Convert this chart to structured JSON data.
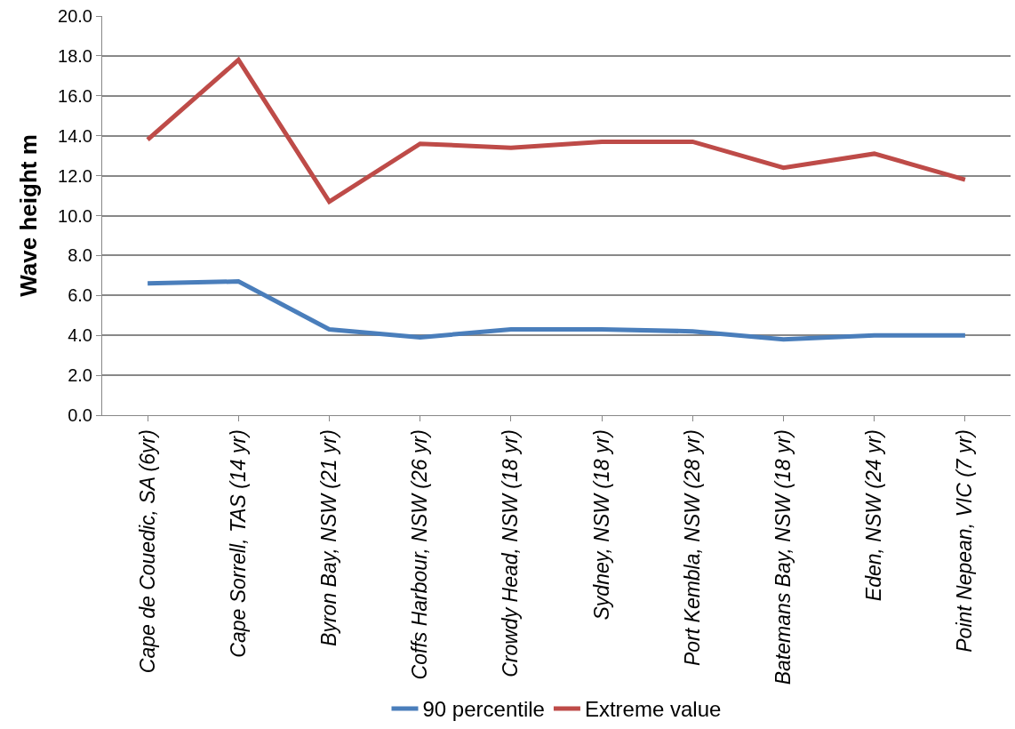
{
  "chart_data": {
    "type": "line",
    "ylabel": "Wave height m",
    "categories": [
      "Cape de Couedic, SA (6yr)",
      "Cape Sorrell, TAS (14 yr)",
      "Byron Bay, NSW (21 yr)",
      "Coffs Harbour, NSW (26 yr)",
      "Crowdy Head, NSW (18 yr)",
      "Sydney, NSW (18 yr)",
      "Port Kembla, NSW (28 yr)",
      "Batemans Bay, NSW (18 yr)",
      "Eden, NSW (24 yr)",
      "Point Nepean, VIC (7 yr)"
    ],
    "series": [
      {
        "name": "90 percentile",
        "color": "#4a7ebb",
        "values": [
          6.6,
          6.7,
          4.3,
          3.9,
          4.3,
          4.3,
          4.2,
          3.8,
          4.0,
          4.0
        ]
      },
      {
        "name": "Extreme value",
        "color": "#be4b48",
        "values": [
          13.8,
          17.8,
          10.7,
          13.6,
          13.4,
          13.7,
          13.7,
          12.4,
          13.1,
          11.8
        ]
      }
    ],
    "ylim": [
      0,
      20
    ],
    "yticks": [
      {
        "value": 0,
        "label": "0.0"
      },
      {
        "value": 2,
        "label": "2.0"
      },
      {
        "value": 4,
        "label": "4.0"
      },
      {
        "value": 6,
        "label": "6.0"
      },
      {
        "value": 8,
        "label": "8.0"
      },
      {
        "value": 10,
        "label": "10.0"
      },
      {
        "value": 12,
        "label": "12.0"
      },
      {
        "value": 14,
        "label": "14.0"
      },
      {
        "value": 16,
        "label": "16.0"
      },
      {
        "value": 18,
        "label": "18.0"
      },
      {
        "value": 20,
        "label": "20.0"
      }
    ],
    "grid": "y",
    "legend": "bottom",
    "marker": "none",
    "line_style": "solid"
  }
}
